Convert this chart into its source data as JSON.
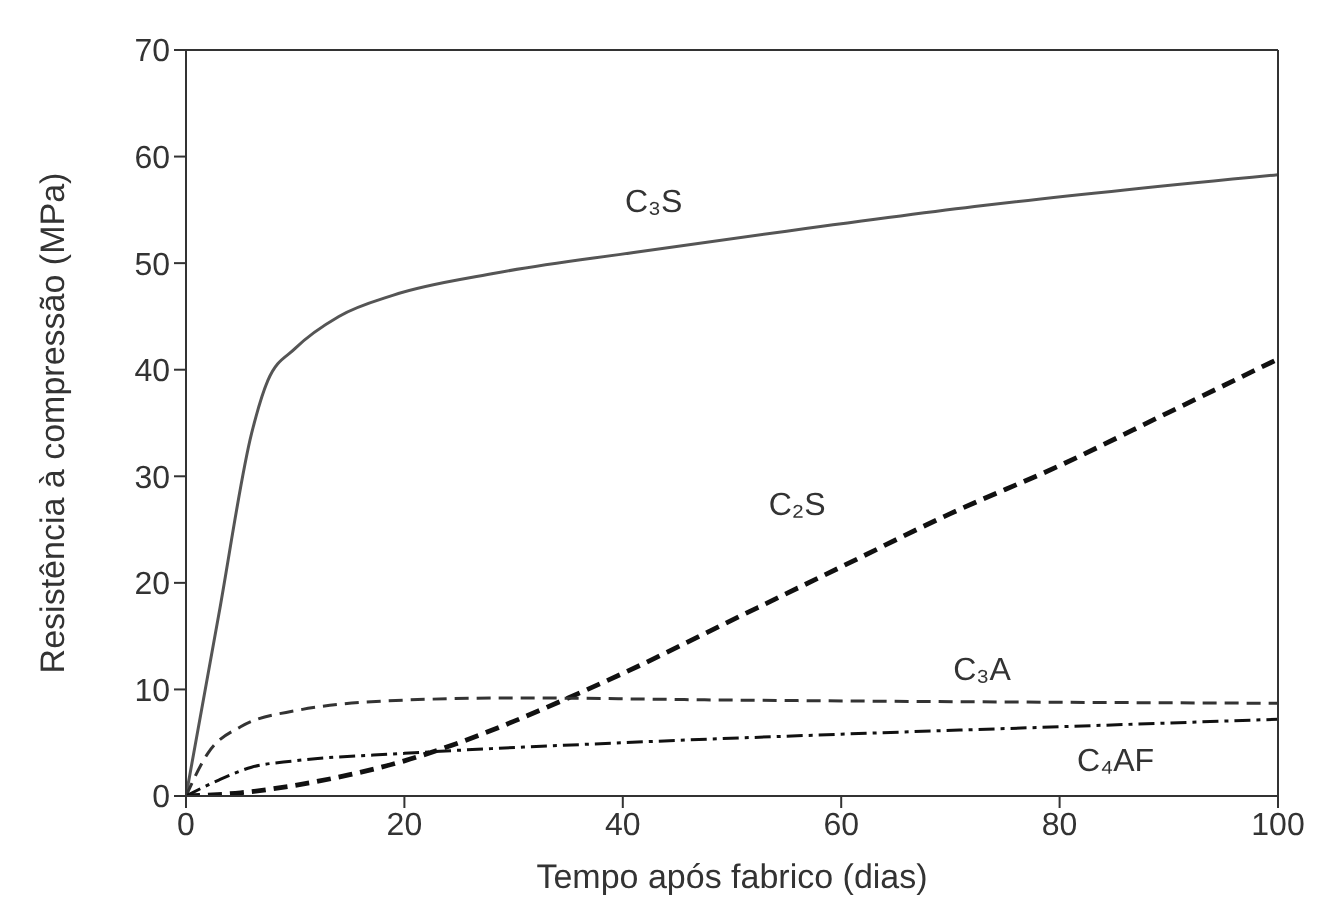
{
  "chart_data": {
    "type": "line",
    "xlabel": "Tempo após fabrico (dias)",
    "ylabel": "Resistência à compressão (MPa)",
    "xlim": [
      0,
      100
    ],
    "ylim": [
      0,
      70
    ],
    "xticks": [
      0,
      20,
      40,
      60,
      80,
      100
    ],
    "yticks": [
      0,
      10,
      20,
      30,
      40,
      50,
      60,
      70
    ],
    "marker": "none",
    "series": [
      {
        "name": "C₃S",
        "color": "#555555",
        "line_style": "solid",
        "x": [
          0,
          3,
          6,
          7.5,
          10,
          14,
          19,
          28,
          41,
          55,
          73,
          100
        ],
        "values": [
          0,
          17,
          34,
          39,
          42,
          45,
          47,
          49,
          51,
          53,
          55.4,
          58.3
        ]
      },
      {
        "name": "C₂S",
        "color": "#111111",
        "line_style": "dashed",
        "x": [
          0,
          5,
          10,
          15,
          20,
          25,
          30,
          35,
          40,
          50,
          60,
          70,
          80,
          90,
          100
        ],
        "values": [
          0,
          0.3,
          1,
          2,
          3.3,
          5,
          7,
          9.2,
          11.5,
          16.5,
          21.5,
          26.5,
          31,
          36,
          41
        ]
      },
      {
        "name": "C₃A",
        "color": "#333333",
        "line_style": "dashed",
        "x": [
          0,
          2,
          5,
          10,
          20,
          30,
          50,
          100
        ],
        "values": [
          0,
          4,
          6.5,
          8,
          9,
          9.2,
          9,
          8.7
        ]
      },
      {
        "name": "C₄AF",
        "color": "#111111",
        "line_style": "dashdot",
        "x": [
          0,
          3,
          6,
          10,
          20,
          40,
          60,
          80,
          100
        ],
        "values": [
          0,
          1.5,
          2.7,
          3.3,
          4,
          5,
          5.8,
          6.5,
          7.2
        ]
      }
    ]
  }
}
